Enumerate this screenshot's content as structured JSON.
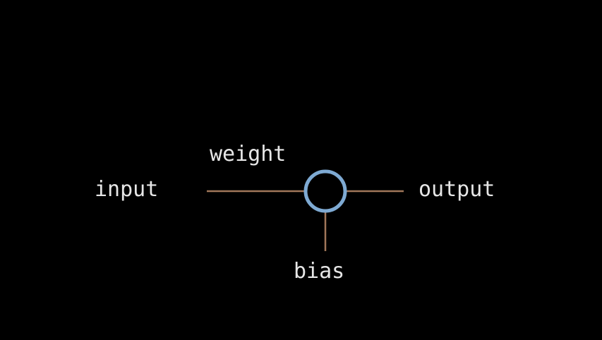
{
  "diagram": {
    "labels": {
      "input": "input",
      "weight": "weight",
      "output": "output",
      "bias": "bias"
    },
    "colors": {
      "background": "#000000",
      "text": "#e6e6e6",
      "connection": "#a0765a",
      "neuron_stroke": "#7eaad3"
    }
  }
}
